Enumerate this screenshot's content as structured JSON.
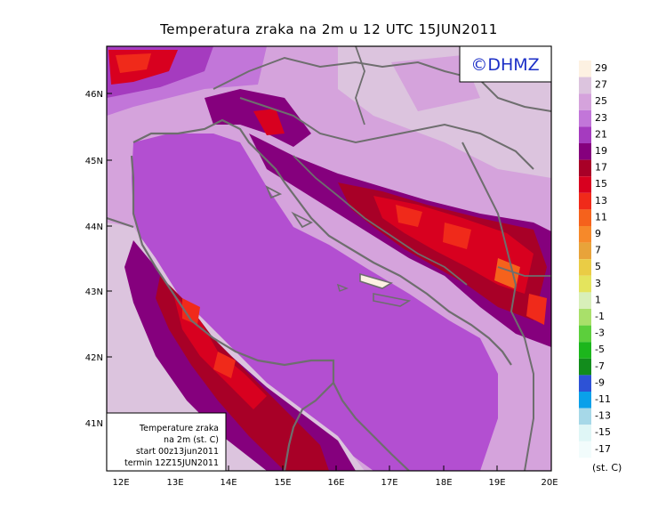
{
  "title": "Temperatura zraka na 2m u 12 UTC 15JUN2011",
  "logo": "©DHMZ",
  "info_box": {
    "line1": "Temperature zraka",
    "line2": "na 2m (st. C)",
    "line3": "start 00z13jun2011",
    "line4": "termin 12Z15JUN2011"
  },
  "lat_labels": [
    "46N",
    "45N",
    "44N",
    "43N",
    "42N",
    "41N"
  ],
  "lon_labels": [
    "12E",
    "13E",
    "14E",
    "15E",
    "16E",
    "17E",
    "18E",
    "19E",
    "20E"
  ],
  "colorbar": {
    "unit": "(st. C)",
    "labels": [
      "29",
      "27",
      "25",
      "23",
      "21",
      "19",
      "17",
      "15",
      "13",
      "11",
      "9",
      "7",
      "5",
      "3",
      "1",
      "-1",
      "-3",
      "-5",
      "-7",
      "-9",
      "-11",
      "-13",
      "-15",
      "-17"
    ],
    "colors": [
      "#fdf1e2",
      "#dcc4de",
      "#d5a3dc",
      "#c276d9",
      "#a53bbf",
      "#85007d",
      "#a80027",
      "#d8001f",
      "#f02a1a",
      "#f5621c",
      "#f6892a",
      "#e8a33a",
      "#eacc45",
      "#e4e45d",
      "#d8efb9",
      "#a9e06a",
      "#5ccf3c",
      "#1cb61c",
      "#128c1c",
      "#2d52d6",
      "#0aa0ea",
      "#a6d8e8",
      "#dff6f6",
      "#f2fcfc"
    ]
  },
  "colors": {
    "sea": "#b34fd1",
    "coast": "#6e6e6e"
  }
}
